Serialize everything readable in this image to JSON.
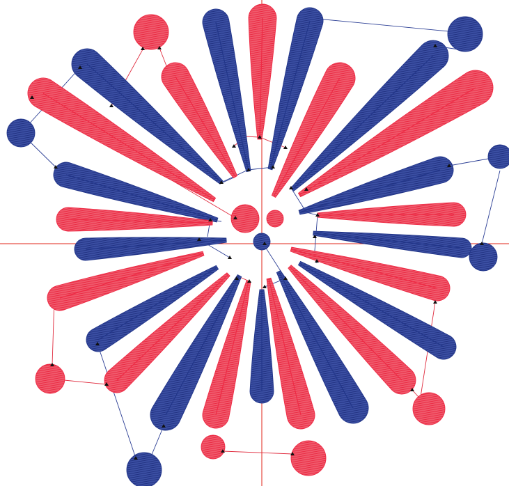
{
  "view": {
    "background": "#ffffff",
    "crosshair_color": "#e02418"
  },
  "thread_colors": {
    "red": "#ee2b45",
    "blue": "#22368a",
    "red_jump": "#e0293c",
    "blue_jump": "#2c3f95"
  },
  "design": {
    "motif": "firework-burst",
    "petal_count_red": 13,
    "petal_count_blue": 13,
    "disc_count_red": 7,
    "disc_count_blue": 6
  }
}
